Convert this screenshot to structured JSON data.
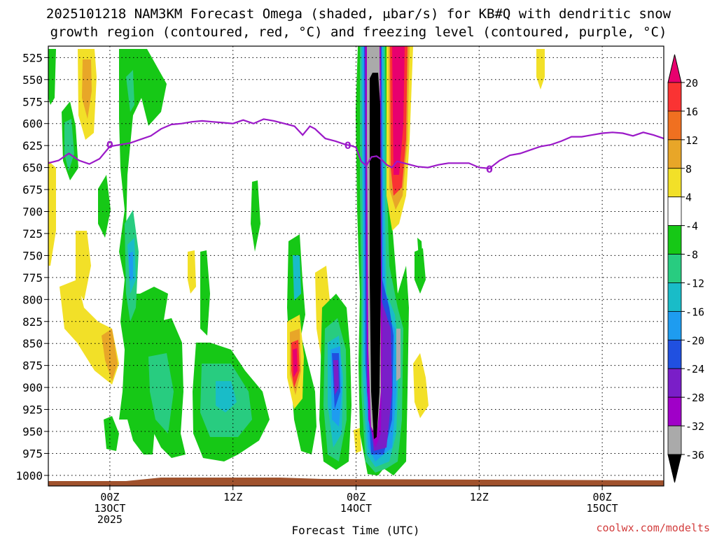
{
  "title_line1": "2025101218 NAM3KM Forecast Omega (shaded, μbar/s) for KB#Q with dendritic snow",
  "title_line2": "growth region (contoured, red, °C) and freezing level (contoured, purple, °C)",
  "credit": "coolwx.com/modelts",
  "chart_data": {
    "type": "heatmap",
    "xlabel": "Forecast Time (UTC)",
    "ylabel": "",
    "x_ticks": [
      {
        "hours": 6,
        "lines": [
          "00Z",
          "13OCT",
          "2025"
        ]
      },
      {
        "hours": 18,
        "lines": [
          "12Z"
        ]
      },
      {
        "hours": 30,
        "lines": [
          "00Z",
          "14OCT"
        ]
      },
      {
        "hours": 42,
        "lines": [
          "12Z"
        ]
      },
      {
        "hours": 54,
        "lines": [
          "00Z",
          "15OCT"
        ]
      }
    ],
    "xlim": [
      0,
      60
    ],
    "y_ticks": [
      525,
      550,
      575,
      600,
      625,
      650,
      675,
      700,
      725,
      750,
      775,
      800,
      825,
      850,
      875,
      900,
      925,
      950,
      975,
      1000
    ],
    "ylim": [
      1012,
      512
    ],
    "y_unit": "hPa",
    "grid": true,
    "colorbar": {
      "levels": [
        20,
        16,
        12,
        8,
        4,
        -4,
        -8,
        -12,
        -16,
        -20,
        -24,
        -28,
        -32,
        -36
      ],
      "colors": [
        "#e8006e",
        "#fa3333",
        "#f07020",
        "#e8a628",
        "#f2e028",
        "#ffffff",
        "#16c816",
        "#28cc80",
        "#19bcc8",
        "#1e9cf0",
        "#2050e0",
        "#7a1ec8",
        "#a000c8",
        "#aaaaaa",
        "#000000"
      ]
    },
    "freezing_level": {
      "label": "0",
      "color": "#9b19c8",
      "points": [
        [
          0,
          645
        ],
        [
          1,
          642
        ],
        [
          2,
          634
        ],
        [
          3,
          642
        ],
        [
          4,
          646
        ],
        [
          5,
          640
        ],
        [
          6,
          626
        ],
        [
          7,
          624
        ],
        [
          8,
          622
        ],
        [
          9,
          618
        ],
        [
          10,
          614
        ],
        [
          11,
          606
        ],
        [
          12,
          601
        ],
        [
          13,
          600
        ],
        [
          14,
          598
        ],
        [
          15,
          597
        ],
        [
          16,
          598
        ],
        [
          17,
          599
        ],
        [
          18,
          600
        ],
        [
          19,
          596
        ],
        [
          20,
          600
        ],
        [
          21,
          595
        ],
        [
          22,
          597
        ],
        [
          23,
          600
        ],
        [
          24,
          603
        ],
        [
          24.8,
          613
        ],
        [
          25.5,
          603
        ],
        [
          26,
          606
        ],
        [
          27,
          617
        ],
        [
          28,
          620
        ],
        [
          29,
          624
        ],
        [
          29.5,
          625
        ],
        [
          30,
          627
        ],
        [
          30.5,
          643
        ],
        [
          31,
          648
        ],
        [
          31.5,
          638
        ],
        [
          32,
          637
        ],
        [
          32.5,
          641
        ],
        [
          33,
          647
        ],
        [
          33.5,
          650
        ],
        [
          34,
          643
        ],
        [
          35,
          646
        ],
        [
          36,
          649
        ],
        [
          37,
          650
        ],
        [
          38,
          647
        ],
        [
          39,
          645
        ],
        [
          40,
          645
        ],
        [
          41,
          645
        ],
        [
          42,
          650
        ],
        [
          43,
          651
        ],
        [
          44,
          642
        ],
        [
          45,
          636
        ],
        [
          46,
          634
        ],
        [
          47,
          630
        ],
        [
          48,
          626
        ],
        [
          49,
          624
        ],
        [
          50,
          620
        ],
        [
          51,
          615
        ],
        [
          52,
          615
        ],
        [
          53,
          613
        ],
        [
          54,
          611
        ],
        [
          55,
          610
        ],
        [
          56,
          611
        ],
        [
          57,
          614
        ],
        [
          58,
          610
        ],
        [
          59,
          613
        ],
        [
          60,
          617
        ]
      ],
      "label_points": [
        [
          6,
          624
        ],
        [
          29.2,
          625
        ],
        [
          43,
          652
        ]
      ]
    },
    "terrain": {
      "color": "#a0522d",
      "base_pressure": 1008
    }
  }
}
